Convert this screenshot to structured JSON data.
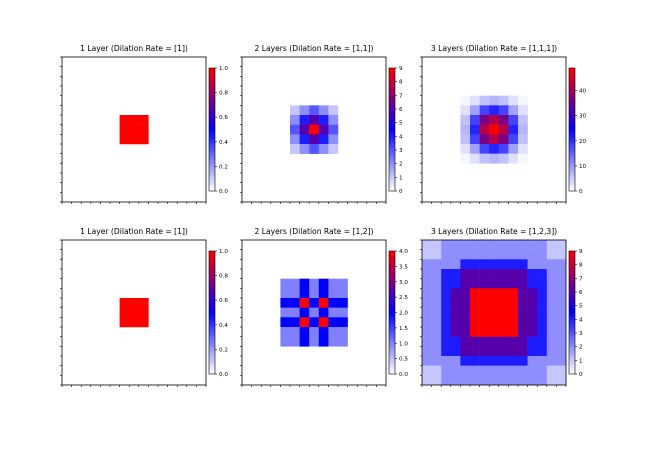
{
  "chart_data": [
    {
      "type": "heatmap",
      "title": "1 Layer (Dilation Rate = [1])",
      "grid_size": 15,
      "grid": false,
      "colormap": [
        "#ffffff",
        "#0000ff",
        "#ff0000"
      ],
      "colorbar": {
        "range": [
          0.0,
          1.0
        ],
        "ticks": [
          "0.0",
          "0.2",
          "0.4",
          "0.6",
          "0.8",
          "1.0"
        ]
      },
      "cells": {
        "start": 6,
        "values": [
          [
            1,
            1,
            1
          ],
          [
            1,
            1,
            1
          ],
          [
            1,
            1,
            1
          ]
        ]
      }
    },
    {
      "type": "heatmap",
      "title": "2 Layers (Dilation Rate = [1,1])",
      "grid_size": 15,
      "grid": false,
      "colormap": [
        "#ffffff",
        "#0000ff",
        "#ff0000"
      ],
      "colorbar": {
        "range": [
          0,
          9
        ],
        "ticks": [
          "0",
          "1",
          "2",
          "3",
          "4",
          "5",
          "6",
          "7",
          "8",
          "9"
        ]
      },
      "cells": {
        "start": 5,
        "values": [
          [
            1,
            2,
            3,
            2,
            1
          ],
          [
            2,
            4,
            6,
            4,
            2
          ],
          [
            3,
            6,
            9,
            6,
            3
          ],
          [
            2,
            4,
            6,
            4,
            2
          ],
          [
            1,
            2,
            3,
            2,
            1
          ]
        ]
      }
    },
    {
      "type": "heatmap",
      "title": "3 Layers (Dilation Rate = [1,1,1])",
      "grid_size": 15,
      "grid": false,
      "colormap": [
        "#ffffff",
        "#0000ff",
        "#ff0000"
      ],
      "colorbar": {
        "range": [
          0,
          49
        ],
        "ticks": [
          "0",
          "10",
          "20",
          "30",
          "40"
        ]
      },
      "cells": {
        "start": 4,
        "values": [
          [
            1,
            3,
            6,
            7,
            6,
            3,
            1
          ],
          [
            3,
            9,
            18,
            21,
            18,
            9,
            3
          ],
          [
            6,
            18,
            36,
            42,
            36,
            18,
            6
          ],
          [
            7,
            21,
            42,
            49,
            42,
            21,
            7
          ],
          [
            6,
            18,
            36,
            42,
            36,
            18,
            6
          ],
          [
            3,
            9,
            18,
            21,
            18,
            9,
            3
          ],
          [
            1,
            3,
            6,
            7,
            6,
            3,
            1
          ]
        ]
      }
    },
    {
      "type": "heatmap",
      "title": "1 Layer (Dilation Rate = [1])",
      "grid_size": 15,
      "grid": false,
      "colormap": [
        "#ffffff",
        "#0000ff",
        "#ff0000"
      ],
      "colorbar": {
        "range": [
          0.0,
          1.0
        ],
        "ticks": [
          "0.0",
          "0.2",
          "0.4",
          "0.6",
          "0.8",
          "1.0"
        ]
      },
      "cells": {
        "start": 6,
        "values": [
          [
            1,
            1,
            1
          ],
          [
            1,
            1,
            1
          ],
          [
            1,
            1,
            1
          ]
        ]
      }
    },
    {
      "type": "heatmap",
      "title": "2 Layers (Dilation Rate = [1,2])",
      "grid_size": 15,
      "grid": false,
      "colormap": [
        "#ffffff",
        "#0000ff",
        "#ff0000"
      ],
      "colorbar": {
        "range": [
          0.0,
          4.0
        ],
        "ticks": [
          "0.0",
          "0.5",
          "1.0",
          "1.5",
          "2.0",
          "2.5",
          "3.0",
          "3.5",
          "4.0"
        ]
      },
      "cells": {
        "start": 4,
        "values": [
          [
            1,
            1,
            2,
            1,
            2,
            1,
            1
          ],
          [
            1,
            1,
            2,
            1,
            2,
            1,
            1
          ],
          [
            2,
            2,
            4,
            2,
            4,
            2,
            2
          ],
          [
            1,
            1,
            2,
            1,
            2,
            1,
            1
          ],
          [
            2,
            2,
            4,
            2,
            4,
            2,
            2
          ],
          [
            1,
            1,
            2,
            1,
            2,
            1,
            1
          ],
          [
            1,
            1,
            2,
            1,
            2,
            1,
            1
          ]
        ]
      }
    },
    {
      "type": "heatmap",
      "title": "3 Layers (Dilation Rate = [1,2,3])",
      "grid_size": 15,
      "grid": false,
      "colormap": [
        "#ffffff",
        "#0000ff",
        "#ff0000"
      ],
      "colorbar": {
        "range": [
          0,
          9
        ],
        "ticks": [
          "0",
          "1",
          "2",
          "3",
          "4",
          "5",
          "6",
          "7",
          "8",
          "9"
        ]
      },
      "cells": {
        "start": 0,
        "values": [
          [
            1,
            1,
            2,
            2,
            2,
            2,
            2,
            2,
            2,
            2,
            2,
            2,
            2,
            1,
            1
          ],
          [
            1,
            1,
            2,
            2,
            2,
            2,
            2,
            2,
            2,
            2,
            2,
            2,
            2,
            1,
            1
          ],
          [
            2,
            2,
            2,
            2,
            4,
            4,
            4,
            4,
            4,
            4,
            4,
            2,
            2,
            2,
            2
          ],
          [
            2,
            2,
            4,
            4,
            6,
            6,
            6,
            6,
            6,
            6,
            6,
            4,
            4,
            2,
            2
          ],
          [
            2,
            2,
            4,
            4,
            6,
            6,
            6,
            6,
            6,
            6,
            6,
            4,
            4,
            2,
            2
          ],
          [
            2,
            2,
            4,
            6,
            6,
            9,
            9,
            9,
            9,
            9,
            6,
            6,
            4,
            2,
            2
          ],
          [
            2,
            2,
            4,
            6,
            6,
            9,
            9,
            9,
            9,
            9,
            6,
            6,
            4,
            2,
            2
          ],
          [
            2,
            2,
            4,
            6,
            6,
            9,
            9,
            9,
            9,
            9,
            6,
            6,
            4,
            2,
            2
          ],
          [
            2,
            2,
            4,
            6,
            6,
            9,
            9,
            9,
            9,
            9,
            6,
            6,
            4,
            2,
            2
          ],
          [
            2,
            2,
            4,
            6,
            6,
            9,
            9,
            9,
            9,
            9,
            6,
            6,
            4,
            2,
            2
          ],
          [
            2,
            2,
            4,
            4,
            6,
            6,
            6,
            6,
            6,
            6,
            6,
            4,
            4,
            2,
            2
          ],
          [
            2,
            2,
            4,
            4,
            6,
            6,
            6,
            6,
            6,
            6,
            6,
            4,
            4,
            2,
            2
          ],
          [
            2,
            2,
            2,
            2,
            4,
            4,
            4,
            4,
            4,
            4,
            4,
            2,
            2,
            2,
            2
          ],
          [
            1,
            1,
            2,
            2,
            2,
            2,
            2,
            2,
            2,
            2,
            2,
            2,
            2,
            1,
            1
          ],
          [
            1,
            1,
            2,
            2,
            2,
            2,
            2,
            2,
            2,
            2,
            2,
            2,
            2,
            1,
            1
          ]
        ]
      }
    }
  ]
}
